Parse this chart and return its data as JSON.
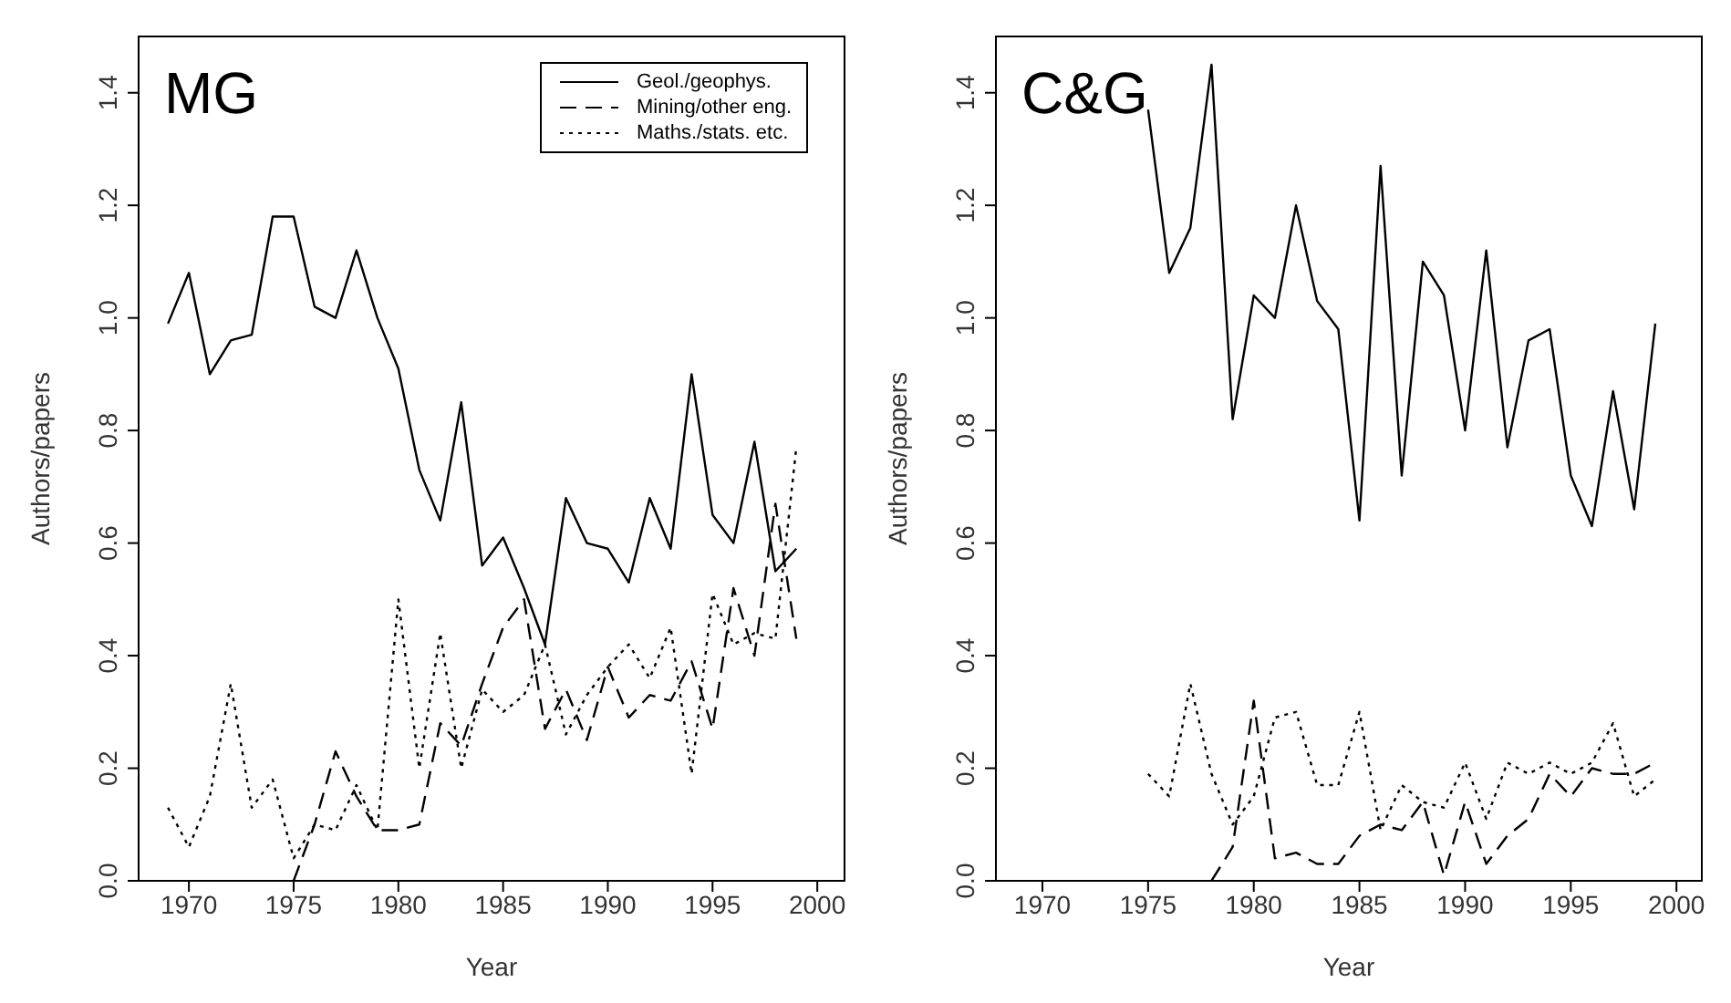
{
  "chart_data": [
    {
      "type": "line",
      "title": "MG",
      "xlabel": "Year",
      "ylabel": "Authors/papers",
      "legend": "top right",
      "marker": "none",
      "grid": false,
      "x": [
        1969,
        1970,
        1971,
        1972,
        1973,
        1974,
        1975,
        1976,
        1977,
        1978,
        1979,
        1980,
        1981,
        1982,
        1983,
        1984,
        1985,
        1986,
        1987,
        1988,
        1989,
        1990,
        1991,
        1992,
        1993,
        1994,
        1995,
        1996,
        1997,
        1998,
        1999
      ],
      "xlim": [
        1967.6,
        2001.3
      ],
      "xticks": [
        1970,
        1975,
        1980,
        1985,
        1990,
        1995,
        2000
      ],
      "ylim": [
        0,
        1.5
      ],
      "yticks": [
        {
          "value": 0,
          "label": "0.0"
        },
        {
          "value": 0.2,
          "label": "0.2"
        },
        {
          "value": 0.4,
          "label": "0.4"
        },
        {
          "value": 0.6,
          "label": "0.6"
        },
        {
          "value": 0.8,
          "label": "0.8"
        },
        {
          "value": 1,
          "label": "1.0"
        },
        {
          "value": 1.2,
          "label": "1.2"
        },
        {
          "value": 1.4,
          "label": "1.4"
        }
      ],
      "series": [
        {
          "name": "Geol./geophys.",
          "color": "#000000",
          "line_style": "solid",
          "values": [
            0.99,
            1.08,
            0.9,
            0.96,
            0.97,
            1.18,
            1.18,
            1.02,
            1.0,
            1.12,
            1.0,
            0.91,
            0.73,
            0.64,
            0.85,
            0.56,
            0.61,
            0.52,
            0.42,
            0.68,
            0.6,
            0.59,
            0.53,
            0.68,
            0.59,
            0.9,
            0.65,
            0.6,
            0.78,
            0.55,
            0.59
          ]
        },
        {
          "name": "Mining/other eng.",
          "color": "#000000",
          "line_style": "dashed",
          "values": [
            null,
            null,
            null,
            null,
            null,
            null,
            0.0,
            0.1,
            0.23,
            0.15,
            0.09,
            0.09,
            0.1,
            0.28,
            0.24,
            0.35,
            0.45,
            0.5,
            0.27,
            0.34,
            0.25,
            0.38,
            0.29,
            0.33,
            0.32,
            0.39,
            0.27,
            0.52,
            0.4,
            0.67,
            0.43
          ]
        },
        {
          "name": "Maths./stats. etc.",
          "color": "#000000",
          "line_style": "dotted",
          "values": [
            0.13,
            0.06,
            0.15,
            0.35,
            0.13,
            0.18,
            0.04,
            0.1,
            0.09,
            0.17,
            0.09,
            0.5,
            0.2,
            0.44,
            0.2,
            0.34,
            0.3,
            0.33,
            0.42,
            0.26,
            0.33,
            0.38,
            0.42,
            0.36,
            0.45,
            0.19,
            0.51,
            0.42,
            0.44,
            0.43,
            0.77
          ]
        }
      ]
    },
    {
      "type": "line",
      "title": "C&G",
      "xlabel": "Year",
      "ylabel": "Authors/papers",
      "marker": "none",
      "grid": false,
      "x": [
        1975,
        1976,
        1977,
        1978,
        1979,
        1980,
        1981,
        1982,
        1983,
        1984,
        1985,
        1986,
        1987,
        1988,
        1989,
        1990,
        1991,
        1992,
        1993,
        1994,
        1995,
        1996,
        1997,
        1998,
        1999
      ],
      "xlim": [
        1967.8,
        2001.2
      ],
      "xticks": [
        1970,
        1975,
        1980,
        1985,
        1990,
        1995,
        2000
      ],
      "ylim": [
        0,
        1.5
      ],
      "yticks": [
        {
          "value": 0,
          "label": "0.0"
        },
        {
          "value": 0.2,
          "label": "0.2"
        },
        {
          "value": 0.4,
          "label": "0.4"
        },
        {
          "value": 0.6,
          "label": "0.6"
        },
        {
          "value": 0.8,
          "label": "0.8"
        },
        {
          "value": 1,
          "label": "1.0"
        },
        {
          "value": 1.2,
          "label": "1.2"
        },
        {
          "value": 1.4,
          "label": "1.4"
        }
      ],
      "series": [
        {
          "color": "#000000",
          "line_style": "solid",
          "values": [
            1.37,
            1.08,
            1.16,
            1.45,
            0.82,
            1.04,
            1.0,
            1.2,
            1.03,
            0.98,
            0.64,
            1.27,
            0.72,
            1.1,
            1.04,
            0.8,
            1.12,
            0.77,
            0.96,
            0.98,
            0.72,
            0.63,
            0.87,
            0.66,
            0.99
          ]
        },
        {
          "color": "#000000",
          "line_style": "dashed",
          "values": [
            null,
            null,
            null,
            0.0,
            0.06,
            0.32,
            0.04,
            0.05,
            0.03,
            0.03,
            0.08,
            0.1,
            0.09,
            0.14,
            0.01,
            0.14,
            0.03,
            0.08,
            0.11,
            0.19,
            0.15,
            0.2,
            0.19,
            0.19,
            0.21
          ]
        },
        {
          "color": "#000000",
          "line_style": "dotted",
          "values": [
            0.19,
            0.15,
            0.35,
            0.19,
            0.1,
            0.15,
            0.29,
            0.3,
            0.17,
            0.17,
            0.3,
            0.09,
            0.17,
            0.14,
            0.13,
            0.21,
            0.11,
            0.21,
            0.19,
            0.21,
            0.19,
            0.21,
            0.28,
            0.15,
            0.18
          ]
        }
      ]
    }
  ]
}
